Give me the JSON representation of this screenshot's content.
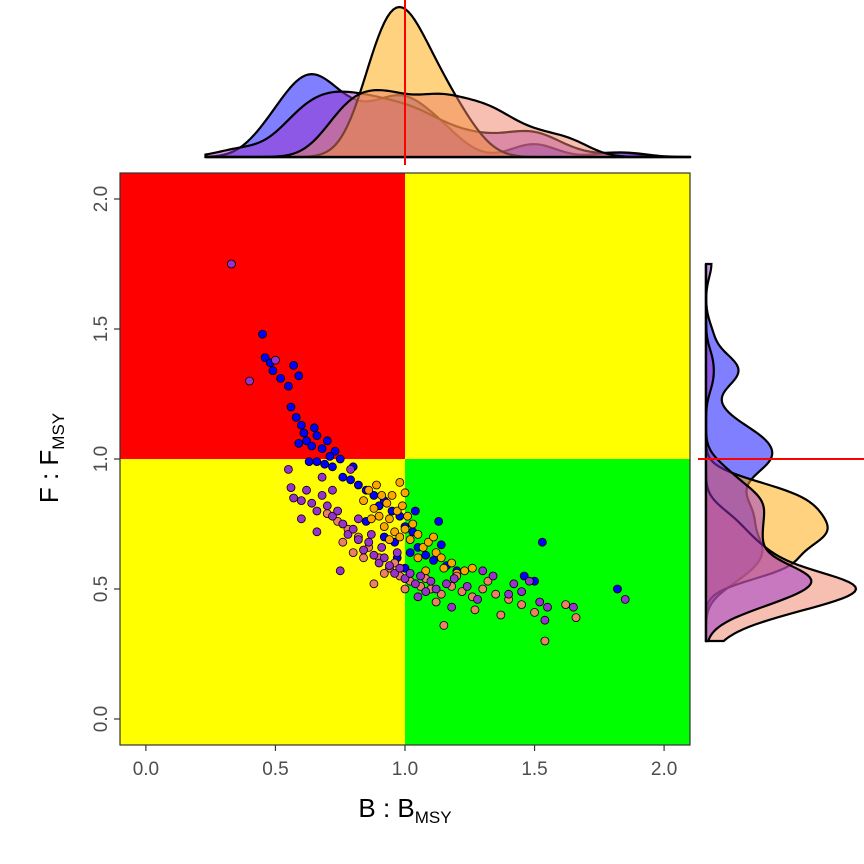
{
  "chart_data": {
    "type": "scatter",
    "title": "",
    "xlabel": {
      "main": "B : B",
      "sub": "MSY"
    },
    "ylabel": {
      "main": "F : F",
      "sub": "MSY"
    },
    "xlim": [
      -0.1,
      2.1
    ],
    "ylim": [
      -0.1,
      2.1
    ],
    "x_ticks": [
      0.0,
      0.5,
      1.0,
      1.5,
      2.0
    ],
    "y_ticks": [
      0.0,
      0.5,
      1.0,
      1.5,
      2.0
    ],
    "x_tick_labels": [
      "0.0",
      "0.5",
      "1.0",
      "1.5",
      "2.0"
    ],
    "y_tick_labels": [
      "0.0",
      "0.5",
      "1.0",
      "1.5",
      "2.0"
    ],
    "reference_lines": {
      "x": 1.0,
      "y": 1.0
    },
    "quadrants": [
      {
        "region": "B<1, F>1",
        "color": "#ff0000"
      },
      {
        "region": "B>1, F>1",
        "color": "#ffff00"
      },
      {
        "region": "B<1, F<1",
        "color": "#ffff00"
      },
      {
        "region": "B>1, F<1",
        "color": "#00ff00"
      }
    ],
    "grid": false,
    "legend": "none",
    "series": [
      {
        "color": "#0000ff",
        "points": [
          [
            0.45,
            1.48
          ],
          [
            0.46,
            1.39
          ],
          [
            0.48,
            1.37
          ],
          [
            0.49,
            1.34
          ],
          [
            0.52,
            1.31
          ],
          [
            0.55,
            1.28
          ],
          [
            0.57,
            1.36
          ],
          [
            0.59,
            1.32
          ],
          [
            0.56,
            1.2
          ],
          [
            0.58,
            1.16
          ],
          [
            0.6,
            1.13
          ],
          [
            0.61,
            1.1
          ],
          [
            0.59,
            1.06
          ],
          [
            0.62,
            1.07
          ],
          [
            0.64,
            1.05
          ],
          [
            0.66,
            1.09
          ],
          [
            0.68,
            1.04
          ],
          [
            0.7,
            1.07
          ],
          [
            0.73,
            1.03
          ],
          [
            0.63,
            0.99
          ],
          [
            0.66,
            0.99
          ],
          [
            0.69,
            0.98
          ],
          [
            0.72,
            0.97
          ],
          [
            0.76,
            0.93
          ],
          [
            0.79,
            0.92
          ],
          [
            0.82,
            0.9
          ],
          [
            0.85,
            0.88
          ],
          [
            0.88,
            0.86
          ],
          [
            0.9,
            0.82
          ],
          [
            0.92,
            0.84
          ],
          [
            0.95,
            0.8
          ],
          [
            0.98,
            0.78
          ],
          [
            1.0,
            0.74
          ],
          [
            1.03,
            0.72
          ],
          [
            0.96,
            0.68
          ],
          [
            1.05,
            0.66
          ],
          [
            1.08,
            0.63
          ],
          [
            1.11,
            0.61
          ],
          [
            1.14,
            0.67
          ],
          [
            1.16,
            0.59
          ],
          [
            1.2,
            0.57
          ],
          [
            1.04,
            0.8
          ],
          [
            1.13,
            0.76
          ],
          [
            1.46,
            0.55
          ],
          [
            1.5,
            0.53
          ],
          [
            1.53,
            0.68
          ],
          [
            1.82,
            0.5
          ],
          [
            0.8,
            0.97
          ],
          [
            0.75,
            1.0
          ],
          [
            0.85,
            0.76
          ],
          [
            0.92,
            0.7
          ],
          [
            0.97,
            0.62
          ],
          [
            1.0,
            0.58
          ],
          [
            1.02,
            0.64
          ],
          [
            0.71,
            1.01
          ],
          [
            0.65,
            1.12
          ]
        ]
      },
      {
        "color": "#ffa500",
        "points": [
          [
            0.89,
            0.9
          ],
          [
            0.91,
            0.86
          ],
          [
            0.93,
            0.83
          ],
          [
            0.95,
            0.86
          ],
          [
            0.97,
            0.8
          ],
          [
            0.99,
            0.82
          ],
          [
            1.01,
            0.78
          ],
          [
            1.03,
            0.75
          ],
          [
            0.86,
            0.88
          ],
          [
            0.88,
            0.81
          ],
          [
            0.9,
            0.78
          ],
          [
            0.92,
            0.74
          ],
          [
            0.94,
            0.77
          ],
          [
            0.96,
            0.72
          ],
          [
            0.98,
            0.7
          ],
          [
            1.0,
            0.73
          ],
          [
            1.02,
            0.69
          ],
          [
            1.05,
            0.71
          ],
          [
            1.07,
            0.66
          ],
          [
            1.09,
            0.68
          ],
          [
            1.12,
            0.64
          ],
          [
            1.14,
            0.62
          ],
          [
            0.84,
            0.84
          ],
          [
            0.87,
            0.77
          ],
          [
            1.11,
            0.7
          ],
          [
            1.15,
            0.58
          ],
          [
            1.18,
            0.6
          ],
          [
            1.2,
            0.56
          ],
          [
            1.23,
            0.57
          ],
          [
            1.26,
            0.58
          ],
          [
            1.0,
            0.87
          ],
          [
            0.98,
            0.91
          ],
          [
            0.94,
            0.69
          ],
          [
            1.05,
            0.62
          ],
          [
            1.08,
            0.57
          ]
        ]
      },
      {
        "color": "#ee7f66",
        "points": [
          [
            0.7,
            0.79
          ],
          [
            0.74,
            0.76
          ],
          [
            0.78,
            0.73
          ],
          [
            0.82,
            0.7
          ],
          [
            0.86,
            0.66
          ],
          [
            0.9,
            0.62
          ],
          [
            0.94,
            0.58
          ],
          [
            0.98,
            0.55
          ],
          [
            1.02,
            0.53
          ],
          [
            1.06,
            0.51
          ],
          [
            1.1,
            0.5
          ],
          [
            1.14,
            0.48
          ],
          [
            1.18,
            0.51
          ],
          [
            1.22,
            0.49
          ],
          [
            1.26,
            0.47
          ],
          [
            1.3,
            0.5
          ],
          [
            1.35,
            0.48
          ],
          [
            1.4,
            0.46
          ],
          [
            1.45,
            0.44
          ],
          [
            1.5,
            0.41
          ],
          [
            0.88,
            0.52
          ],
          [
            0.92,
            0.56
          ],
          [
            1.15,
            0.36
          ],
          [
            1.27,
            0.42
          ],
          [
            1.37,
            0.4
          ],
          [
            1.54,
            0.3
          ],
          [
            1.62,
            0.44
          ],
          [
            1.66,
            0.39
          ],
          [
            0.84,
            0.62
          ],
          [
            0.96,
            0.6
          ],
          [
            1.08,
            0.54
          ],
          [
            1.2,
            0.55
          ],
          [
            1.32,
            0.53
          ],
          [
            0.76,
            0.68
          ],
          [
            0.8,
            0.64
          ],
          [
            1.0,
            0.5
          ],
          [
            1.12,
            0.45
          ]
        ]
      },
      {
        "color": "#9932cc",
        "points": [
          [
            0.33,
            1.75
          ],
          [
            0.4,
            1.3
          ],
          [
            0.5,
            1.38
          ],
          [
            0.55,
            0.96
          ],
          [
            0.56,
            0.89
          ],
          [
            0.57,
            0.85
          ],
          [
            0.6,
            0.84
          ],
          [
            0.62,
            0.88
          ],
          [
            0.64,
            0.83
          ],
          [
            0.66,
            0.8
          ],
          [
            0.68,
            0.86
          ],
          [
            0.7,
            0.82
          ],
          [
            0.72,
            0.78
          ],
          [
            0.74,
            0.8
          ],
          [
            0.76,
            0.75
          ],
          [
            0.78,
            0.71
          ],
          [
            0.8,
            0.73
          ],
          [
            0.82,
            0.69
          ],
          [
            0.84,
            0.65
          ],
          [
            0.86,
            0.68
          ],
          [
            0.88,
            0.63
          ],
          [
            0.9,
            0.6
          ],
          [
            0.92,
            0.62
          ],
          [
            0.94,
            0.59
          ],
          [
            0.96,
            0.56
          ],
          [
            0.98,
            0.58
          ],
          [
            1.0,
            0.54
          ],
          [
            1.02,
            0.56
          ],
          [
            1.04,
            0.52
          ],
          [
            1.06,
            0.55
          ],
          [
            1.08,
            0.49
          ],
          [
            1.1,
            0.53
          ],
          [
            1.12,
            0.5
          ],
          [
            1.16,
            0.52
          ],
          [
            1.19,
            0.54
          ],
          [
            1.24,
            0.51
          ],
          [
            1.28,
            0.46
          ],
          [
            1.34,
            0.55
          ],
          [
            1.42,
            0.52
          ],
          [
            1.45,
            0.49
          ],
          [
            1.48,
            0.53
          ],
          [
            1.52,
            0.45
          ],
          [
            1.55,
            0.43
          ],
          [
            1.54,
            0.38
          ],
          [
            1.85,
            0.46
          ],
          [
            1.65,
            0.43
          ],
          [
            0.75,
            0.57
          ],
          [
            0.82,
            0.77
          ],
          [
            0.6,
            0.77
          ],
          [
            0.66,
            0.72
          ],
          [
            0.79,
            0.96
          ],
          [
            0.72,
            0.88
          ],
          [
            0.68,
            0.93
          ],
          [
            0.87,
            0.71
          ],
          [
            0.91,
            0.66
          ],
          [
            1.3,
            0.57
          ],
          [
            1.4,
            0.48
          ],
          [
            1.18,
            0.43
          ],
          [
            1.05,
            0.47
          ],
          [
            0.97,
            0.64
          ]
        ]
      }
    ],
    "marginal_density_top": [
      {
        "color": "#0000ff",
        "opacity": 0.5,
        "peak_at": 0.7,
        "mass_range": [
          0.33,
          2.1
        ]
      },
      {
        "color": "#9932cc",
        "opacity": 0.5,
        "peak_at": 0.85,
        "mass_range": [
          0.33,
          2.1
        ]
      },
      {
        "color": "#ffa500",
        "opacity": 0.5,
        "peak_at": 1.02,
        "mass_range": [
          0.33,
          2.1
        ]
      },
      {
        "color": "#ee7f66",
        "opacity": 0.5,
        "peak_at": 1.08,
        "mass_range": [
          0.33,
          2.1
        ]
      }
    ],
    "marginal_density_right": [
      {
        "color": "#0000ff",
        "opacity": 0.5,
        "peak_at": 0.9,
        "mass_range": [
          0.3,
          1.75
        ]
      },
      {
        "color": "#ffa500",
        "opacity": 0.5,
        "peak_at": 0.77,
        "mass_range": [
          0.3,
          1.75
        ]
      },
      {
        "color": "#ee7f66",
        "opacity": 0.5,
        "peak_at": 0.56,
        "mass_range": [
          0.3,
          1.75
        ]
      },
      {
        "color": "#9932cc",
        "opacity": 0.5,
        "peak_at": 0.74,
        "mass_range": [
          0.3,
          1.75
        ]
      }
    ]
  }
}
